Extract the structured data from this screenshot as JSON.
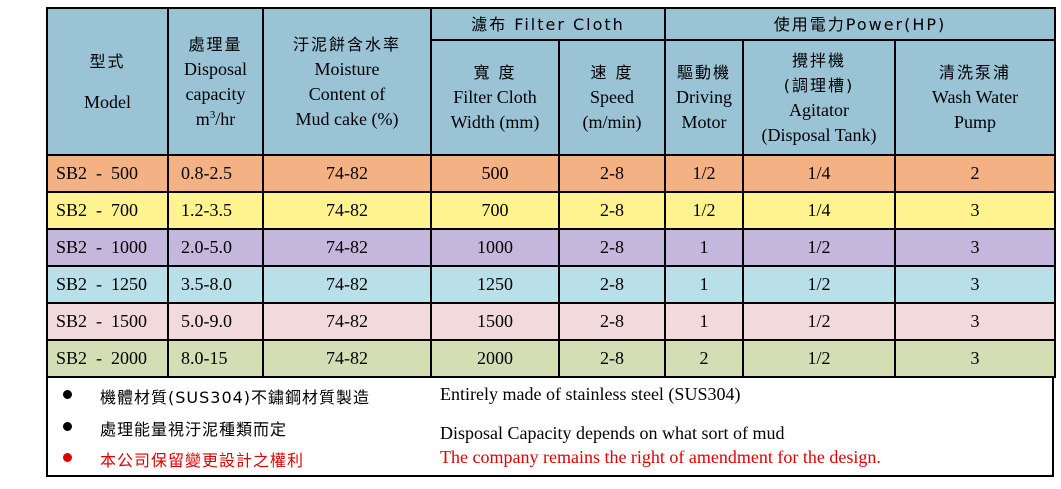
{
  "header": {
    "model_cn": "型式",
    "model_en": "Model",
    "capacity_cn": "處理量",
    "capacity_en1": "Disposal",
    "capacity_en2": "capacity",
    "capacity_unit_base": "m",
    "capacity_unit_sup": "3",
    "capacity_unit_rest": "/hr",
    "moisture_cn": "汙泥餅含水率",
    "moisture_en1": "Moisture",
    "moisture_en2": "Content of",
    "moisture_en3": "Mud cake (%)",
    "filter_group": "濾布 Filter Cloth",
    "width_cn": "寬 度",
    "width_en1": "Filter Cloth",
    "width_en2": "Width (mm)",
    "speed_cn": "速 度",
    "speed_en1": "Speed",
    "speed_en2": "(m/min)",
    "power_group": "使用電力Power(HP)",
    "drive_cn": "驅動機",
    "drive_en1": "Driving",
    "drive_en2": "Motor",
    "agitator_cn1": "攪拌機",
    "agitator_cn2": "(調理槽)",
    "agitator_en1": "Agitator",
    "agitator_en2": "(Disposal Tank)",
    "pump_cn": "清洗泵浦",
    "pump_en1": "Wash Water",
    "pump_en2": "Pump"
  },
  "rows": [
    {
      "model": "SB2  -  500",
      "capacity": "0.8-2.5",
      "moisture": "74-82",
      "width": "500",
      "speed": "2-8",
      "drive": "1/2",
      "agitator": "1/4",
      "pump": "2",
      "color": "#f4b183"
    },
    {
      "model": "SB2  -  700",
      "capacity": "1.2-3.5",
      "moisture": "74-82",
      "width": "700",
      "speed": "2-8",
      "drive": "1/2",
      "agitator": "1/4",
      "pump": "3",
      "color": "#fff38f"
    },
    {
      "model": "SB2  -  1000",
      "capacity": "2.0-5.0",
      "moisture": "74-82",
      "width": "1000",
      "speed": "2-8",
      "drive": "1",
      "agitator": "1/2",
      "pump": "3",
      "color": "#c4b7dc"
    },
    {
      "model": "SB2  -  1250",
      "capacity": "3.5-8.0",
      "moisture": "74-82",
      "width": "1250",
      "speed": "2-8",
      "drive": "1",
      "agitator": "1/2",
      "pump": "3",
      "color": "#b9dfe8"
    },
    {
      "model": "SB2  -  1500",
      "capacity": "5.0-9.0",
      "moisture": "74-82",
      "width": "1500",
      "speed": "2-8",
      "drive": "1",
      "agitator": "1/2",
      "pump": "3",
      "color": "#f2d9dc"
    },
    {
      "model": "SB2  -  2000",
      "capacity": "8.0-15",
      "moisture": "74-82",
      "width": "2000",
      "speed": "2-8",
      "drive": "2",
      "agitator": "1/2",
      "pump": "3",
      "color": "#d3deb5"
    }
  ],
  "notes": [
    {
      "cn": "機體材質(SUS304)不鏽鋼材質製造",
      "en": "Entirely made of stainless steel (SUS304)",
      "color": "#000000"
    },
    {
      "cn": "處理能量視汙泥種類而定",
      "en": "Disposal Capacity depends on what sort of mud",
      "color": "#000000"
    },
    {
      "cn": "本公司保留變更設計之權利",
      "en": "The company remains the right of amendment for the design.",
      "color": "#e00000"
    }
  ],
  "colors": {
    "header_bg": "#9ac3d6",
    "note_red": "#e00000"
  }
}
